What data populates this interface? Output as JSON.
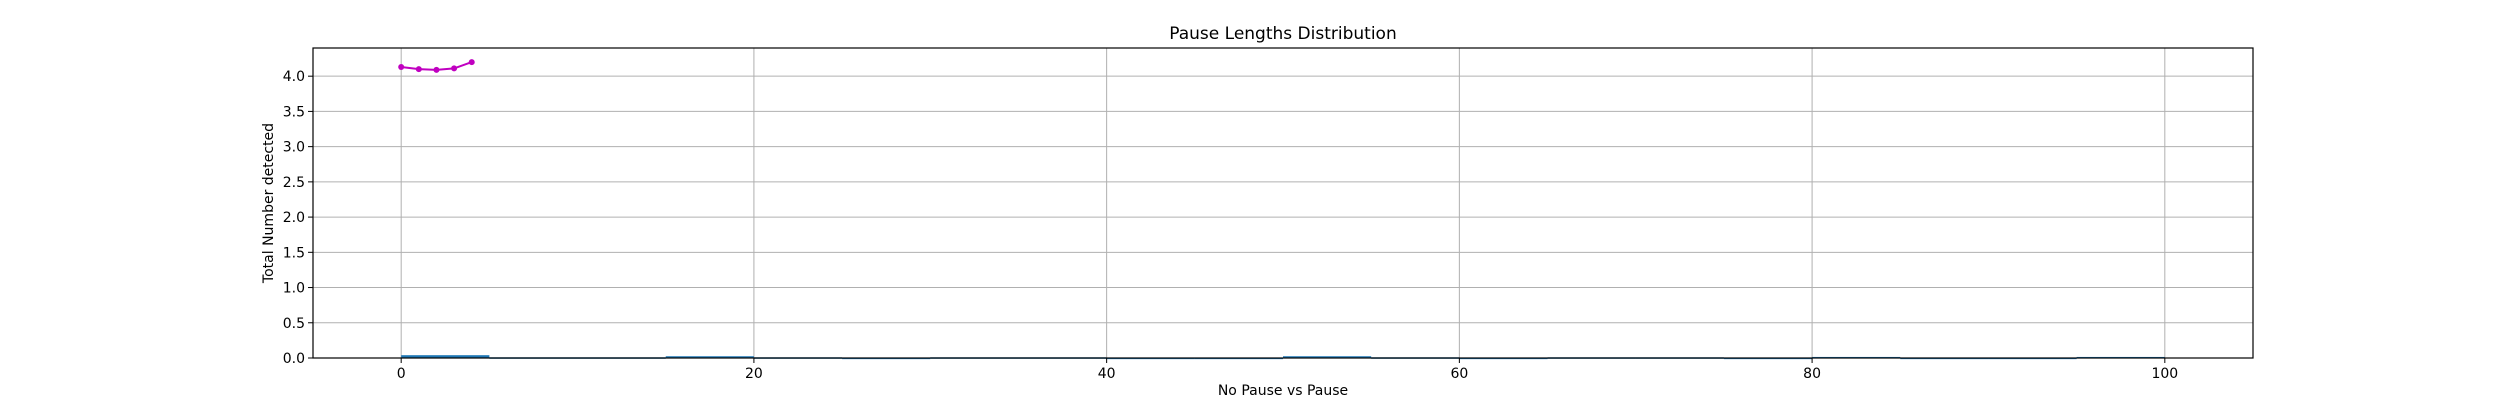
{
  "chart_data": {
    "type": "line",
    "title": "Pause Lengths Distribution",
    "xlabel": "No Pause vs Pause",
    "ylabel": "Total Number detected",
    "xlim": [
      -5,
      105
    ],
    "ylim": [
      0.0,
      4.4
    ],
    "xticks": [
      "0",
      "20",
      "40",
      "60",
      "80",
      "100"
    ],
    "xtick_values": [
      0,
      20,
      40,
      60,
      80,
      100
    ],
    "yticks": [
      "0.0",
      "0.5",
      "1.0",
      "1.5",
      "2.0",
      "2.5",
      "3.0",
      "3.5",
      "4.0"
    ],
    "ytick_values": [
      0.0,
      0.5,
      1.0,
      1.5,
      2.0,
      2.5,
      3.0,
      3.5,
      4.0
    ],
    "grid": true,
    "series": [
      {
        "type": "line",
        "color": "#c000c0",
        "x": [
          0,
          1,
          2,
          3,
          4
        ],
        "y": [
          4.13,
          4.1,
          4.09,
          4.11,
          4.2
        ]
      },
      {
        "type": "histogram",
        "color": "#1f77b4",
        "bins": [
          {
            "x0": 0,
            "x1": 5,
            "value": 0.04
          },
          {
            "x0": 5,
            "x1": 10,
            "value": 0.01
          },
          {
            "x0": 10,
            "x1": 15,
            "value": 0.01
          },
          {
            "x0": 15,
            "x1": 20,
            "value": 0.025
          },
          {
            "x0": 20,
            "x1": 25,
            "value": 0.01
          },
          {
            "x0": 25,
            "x1": 30,
            "value": 0.005
          },
          {
            "x0": 30,
            "x1": 35,
            "value": 0.01
          },
          {
            "x0": 35,
            "x1": 40,
            "value": 0.01
          },
          {
            "x0": 40,
            "x1": 45,
            "value": 0.005
          },
          {
            "x0": 45,
            "x1": 50,
            "value": 0.005
          },
          {
            "x0": 50,
            "x1": 55,
            "value": 0.025
          },
          {
            "x0": 55,
            "x1": 60,
            "value": 0.01
          },
          {
            "x0": 60,
            "x1": 65,
            "value": 0.005
          },
          {
            "x0": 65,
            "x1": 70,
            "value": 0.01
          },
          {
            "x0": 70,
            "x1": 75,
            "value": 0.01
          },
          {
            "x0": 75,
            "x1": 80,
            "value": 0.005
          },
          {
            "x0": 80,
            "x1": 85,
            "value": 0.015
          },
          {
            "x0": 85,
            "x1": 90,
            "value": 0.005
          },
          {
            "x0": 90,
            "x1": 95,
            "value": 0.005
          },
          {
            "x0": 95,
            "x1": 100,
            "value": 0.015
          }
        ]
      }
    ]
  }
}
